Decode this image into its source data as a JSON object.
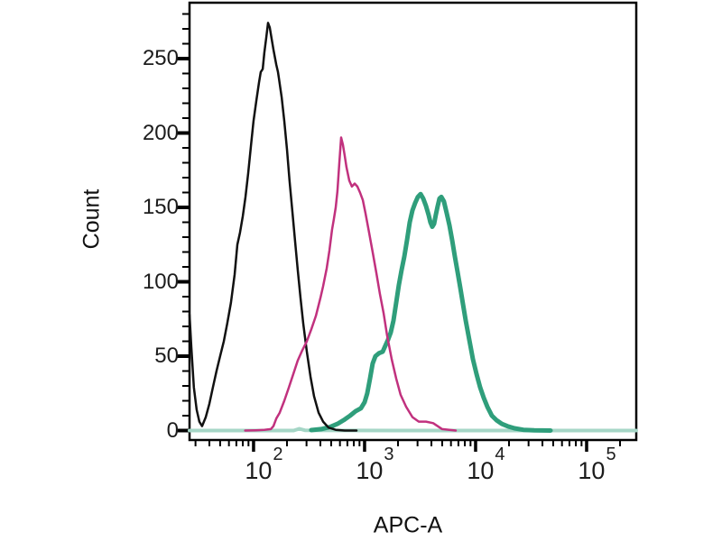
{
  "chart_data": {
    "type": "line",
    "subtype": "flow-cytometry-histogram-overlay",
    "title": "",
    "xlabel": "APC-A",
    "ylabel": "Count",
    "x_scale": "log",
    "x_range": [
      26.5,
      280000
    ],
    "y_range": [
      0,
      287
    ],
    "grid": false,
    "legend": "none",
    "colors": {
      "axis": "#000000",
      "black_curve": "#111111",
      "magenta_curve": "#c1317e",
      "teal_curve": "#2f9e7b",
      "teal_baseline": "#a5d6c6"
    },
    "x_major_ticks": [
      {
        "value": 100,
        "base": "10",
        "exp": "2"
      },
      {
        "value": 1000,
        "base": "10",
        "exp": "3"
      },
      {
        "value": 10000,
        "base": "10",
        "exp": "4"
      },
      {
        "value": 100000,
        "base": "10",
        "exp": "5"
      }
    ],
    "y_major_ticks": [
      {
        "value": 0,
        "label": "0"
      },
      {
        "value": 50,
        "label": "50"
      },
      {
        "value": 100,
        "label": "100"
      },
      {
        "value": 150,
        "label": "150"
      },
      {
        "value": 200,
        "label": "200"
      },
      {
        "value": 250,
        "label": "250"
      }
    ],
    "y_minor_step": 10,
    "series": [
      {
        "name": "teal-baseline",
        "color": "#a5d6c6",
        "width": 4,
        "points": [
          [
            26.5,
            0
          ],
          [
            230,
            0
          ],
          [
            258,
            1.2
          ],
          [
            290,
            0.2
          ],
          [
            2000,
            0
          ],
          [
            20000,
            0
          ],
          [
            280000,
            0
          ]
        ]
      },
      {
        "name": "teal",
        "color": "#2f9e7b",
        "width": 5,
        "points": [
          [
            331,
            0.3
          ],
          [
            407,
            1
          ],
          [
            491,
            2.5
          ],
          [
            570,
            4.5
          ],
          [
            650,
            7
          ],
          [
            741,
            10
          ],
          [
            830,
            13
          ],
          [
            927,
            15
          ],
          [
            1000,
            19
          ],
          [
            1057,
            25
          ],
          [
            1119,
            35
          ],
          [
            1183,
            45
          ],
          [
            1253,
            50
          ],
          [
            1349,
            52
          ],
          [
            1455,
            53
          ],
          [
            1538,
            57
          ],
          [
            1626,
            61
          ],
          [
            1721,
            66
          ],
          [
            1820,
            74
          ],
          [
            1928,
            86
          ],
          [
            2037,
            98
          ],
          [
            2154,
            108
          ],
          [
            2280,
            117
          ],
          [
            2410,
            128
          ],
          [
            2552,
            140
          ],
          [
            2698,
            148
          ],
          [
            2852,
            153
          ],
          [
            3020,
            157
          ],
          [
            3192,
            159
          ],
          [
            3373,
            156
          ],
          [
            3573,
            151
          ],
          [
            3776,
            145
          ],
          [
            3917,
            140
          ],
          [
            4074,
            137
          ],
          [
            4227,
            139
          ],
          [
            4385,
            145
          ],
          [
            4560,
            151
          ],
          [
            4732,
            156
          ],
          [
            4909,
            157
          ],
          [
            5188,
            154
          ],
          [
            5495,
            146
          ],
          [
            5808,
            138
          ],
          [
            6152,
            128
          ],
          [
            6501,
            117
          ],
          [
            6871,
            107
          ],
          [
            7278,
            96
          ],
          [
            7691,
            85
          ],
          [
            8147,
            74
          ],
          [
            8770,
            61
          ],
          [
            9462,
            48
          ],
          [
            10190,
            38
          ],
          [
            10990,
            29
          ],
          [
            11830,
            22
          ],
          [
            12760,
            16
          ],
          [
            14000,
            10
          ],
          [
            15380,
            7
          ],
          [
            17220,
            4.5
          ],
          [
            19280,
            3
          ],
          [
            22390,
            1.5
          ],
          [
            26970,
            0.5
          ],
          [
            33730,
            0.2
          ],
          [
            47320,
            0
          ]
        ]
      },
      {
        "name": "black",
        "color": "#111111",
        "width": 2.5,
        "points": [
          [
            26.5,
            78
          ],
          [
            27.5,
            56
          ],
          [
            29,
            29
          ],
          [
            30.7,
            14
          ],
          [
            32.5,
            6
          ],
          [
            34.4,
            3
          ],
          [
            37.1,
            9
          ],
          [
            40,
            18
          ],
          [
            43,
            29
          ],
          [
            46.4,
            40
          ],
          [
            50,
            50
          ],
          [
            54,
            60
          ],
          [
            58,
            72
          ],
          [
            62.6,
            86
          ],
          [
            67.5,
            105
          ],
          [
            71.4,
            125
          ],
          [
            75.5,
            133
          ],
          [
            80,
            144
          ],
          [
            84.5,
            157
          ],
          [
            89.4,
            173
          ],
          [
            94.6,
            191
          ],
          [
            100,
            208
          ],
          [
            106,
            222
          ],
          [
            112,
            234
          ],
          [
            116,
            241
          ],
          [
            121,
            243
          ],
          [
            125,
            254
          ],
          [
            130,
            264
          ],
          [
            135,
            274
          ],
          [
            140,
            271
          ],
          [
            145,
            264
          ],
          [
            151,
            256
          ],
          [
            160,
            246
          ],
          [
            166,
            241
          ],
          [
            169,
            237
          ],
          [
            179,
            224
          ],
          [
            189,
            208
          ],
          [
            200,
            189
          ],
          [
            211,
            168
          ],
          [
            224,
            147
          ],
          [
            237,
            127
          ],
          [
            250,
            108
          ],
          [
            265,
            89
          ],
          [
            280,
            72
          ],
          [
            302,
            53
          ],
          [
            326,
            36
          ],
          [
            351,
            23
          ],
          [
            385,
            12
          ],
          [
            423,
            6
          ],
          [
            473,
            2
          ],
          [
            550,
            0.5
          ],
          [
            662,
            0
          ],
          [
            845,
            0
          ]
        ]
      },
      {
        "name": "magenta",
        "color": "#c1317e",
        "width": 2.5,
        "points": [
          [
            84,
            0
          ],
          [
            105,
            0.2
          ],
          [
            125,
            0.4
          ],
          [
            143,
            1
          ],
          [
            151,
            3
          ],
          [
            160,
            8
          ],
          [
            172,
            12
          ],
          [
            189,
            20
          ],
          [
            208,
            29
          ],
          [
            228,
            38
          ],
          [
            250,
            47
          ],
          [
            275,
            54
          ],
          [
            302,
            60
          ],
          [
            331,
            68
          ],
          [
            364,
            77
          ],
          [
            400,
            89
          ],
          [
            423,
            97
          ],
          [
            456,
            109
          ],
          [
            482,
            121
          ],
          [
            509,
            135
          ],
          [
            529,
            142
          ],
          [
            550,
            150
          ],
          [
            570,
            161
          ],
          [
            592,
            180
          ],
          [
            615,
            197
          ],
          [
            638,
            192
          ],
          [
            662,
            185
          ],
          [
            687,
            177
          ],
          [
            728,
            168
          ],
          [
            769,
            164
          ],
          [
            815,
            166
          ],
          [
            861,
            164
          ],
          [
            910,
            160
          ],
          [
            964,
            155
          ],
          [
            1019,
            146
          ],
          [
            1099,
            133
          ],
          [
            1183,
            120
          ],
          [
            1276,
            106
          ],
          [
            1374,
            92
          ],
          [
            1482,
            79
          ],
          [
            1596,
            64
          ],
          [
            1754,
            48
          ],
          [
            1928,
            35
          ],
          [
            2113,
            24
          ],
          [
            2366,
            16
          ],
          [
            2698,
            9
          ],
          [
            3076,
            6
          ],
          [
            3573,
            6
          ],
          [
            4150,
            5
          ],
          [
            5000,
            1
          ],
          [
            6622,
            0
          ]
        ]
      }
    ]
  }
}
